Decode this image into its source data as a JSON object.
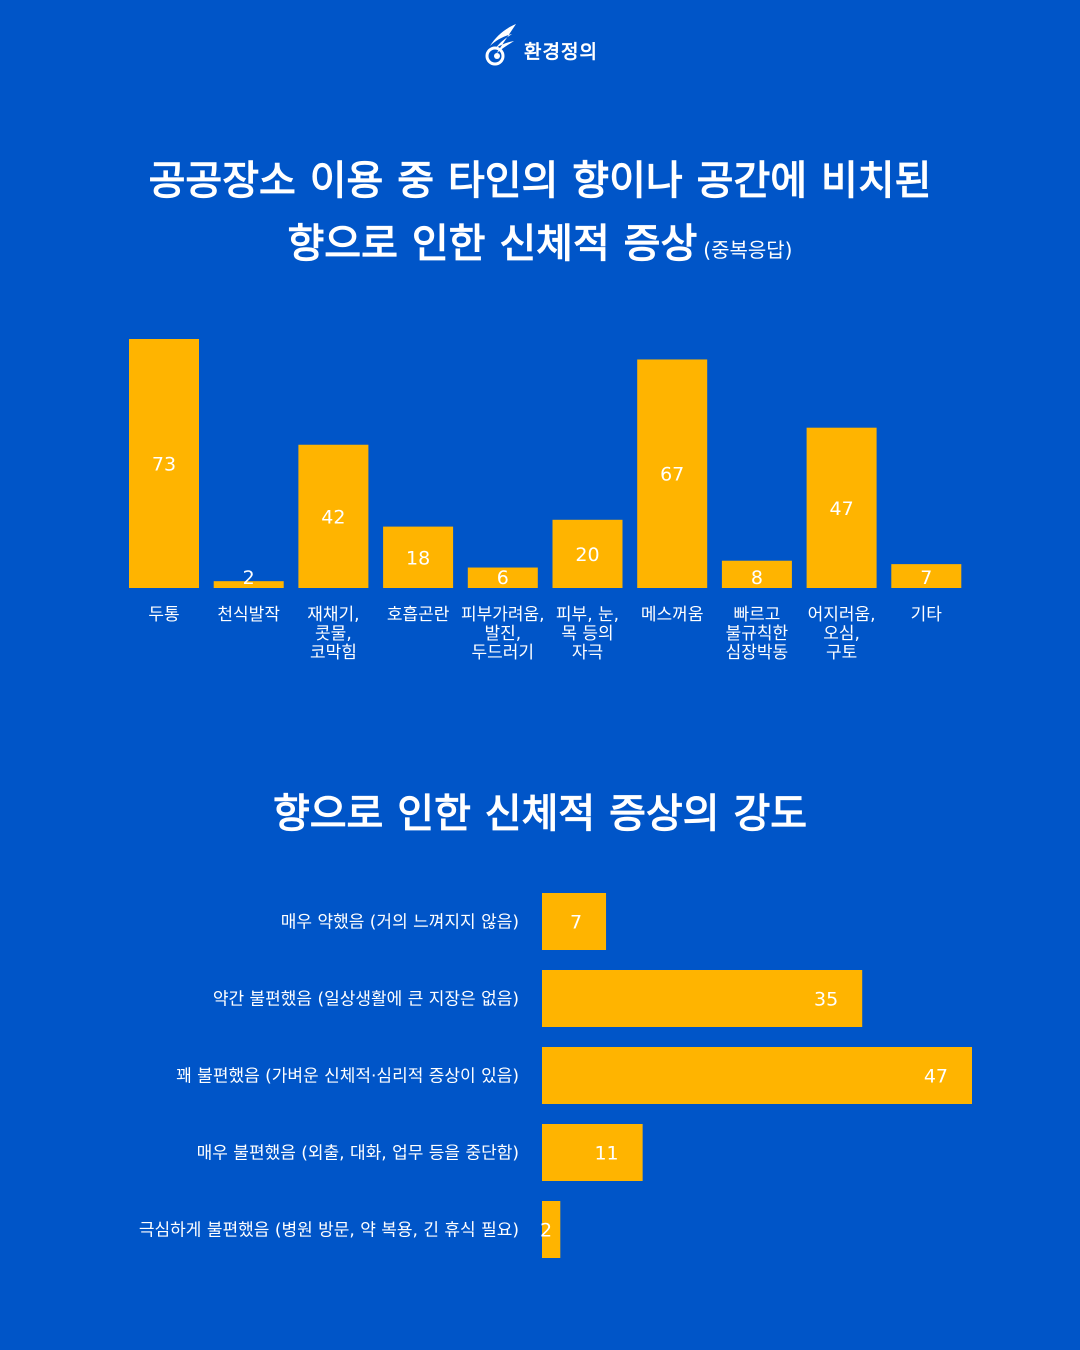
{
  "logo": {
    "text": "환경정의"
  },
  "titles": {
    "main_line1": "공공장소 이용 중 타인의 향이나 공간에 비치된",
    "main_line2": "향으로 인한 신체적 증상",
    "main_note": "(중복응답)",
    "second": "향으로 인한 신체적 증상의 강도"
  },
  "colors": {
    "background": "#0055c8",
    "bar": "#ffb400",
    "text": "#ffffff"
  },
  "chart_data": [
    {
      "type": "bar",
      "title": "공공장소 이용 중 타인의 향이나 공간에 비치된 향으로 인한 신체적 증상 (중복응답)",
      "categories": [
        [
          "두통"
        ],
        [
          "천식발작"
        ],
        [
          "재채기,",
          "콧물,",
          "코막힘"
        ],
        [
          "호흡곤란"
        ],
        [
          "피부가려움,",
          "발진,",
          "두드러기"
        ],
        [
          "피부, 눈,",
          "목 등의",
          "자극"
        ],
        [
          "메스꺼움"
        ],
        [
          "빠르고",
          "불규칙한",
          "심장박동"
        ],
        [
          "어지러움,",
          "오심,",
          "구토"
        ],
        [
          "기타"
        ]
      ],
      "values": [
        73,
        2,
        42,
        18,
        6,
        20,
        67,
        8,
        47,
        7
      ],
      "ylim": [
        0,
        73
      ],
      "grid": false
    },
    {
      "type": "bar",
      "orientation": "horizontal",
      "title": "향으로 인한 신체적 증상의 강도",
      "categories": [
        "매우 약했음 (거의 느껴지지 않음)",
        "약간 불편했음 (일상생활에 큰 지장은 없음)",
        "꽤 불편했음 (가벼운 신체적·심리적 증상이 있음)",
        "매우 불편했음 (외출, 대화, 업무 등을 중단함)",
        "극심하게 불편했음 (병원 방문, 약 복용, 긴 휴식 필요)"
      ],
      "values": [
        7,
        35,
        47,
        11,
        2
      ],
      "xlim": [
        0,
        47
      ],
      "grid": false
    }
  ]
}
